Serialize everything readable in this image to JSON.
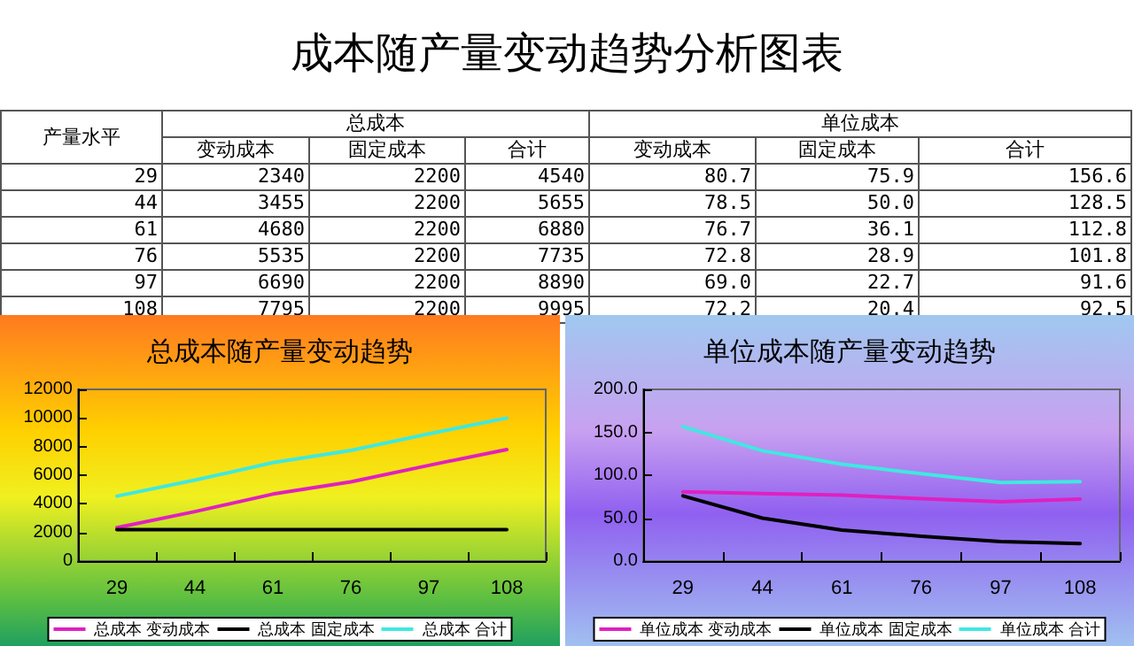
{
  "chart_data": [
    {
      "type": "other",
      "title": "成本随产量变动趋势分析图表",
      "annotations": [
        "产量水平",
        "总成本",
        "变动成本",
        "固定成本",
        "合计",
        "单位成本",
        "变动成本",
        "固定成本",
        "合计"
      ]
    },
    {
      "type": "line",
      "title": "总成本随产量变动趋势",
      "categories": [
        "29",
        "44",
        "61",
        "76",
        "97",
        "108"
      ],
      "ylim": [
        0,
        12000
      ],
      "yticks": [
        0,
        2000,
        4000,
        6000,
        8000,
        10000,
        12000
      ],
      "grid": false,
      "legend": "bottom",
      "marker": "none",
      "line_style": "solid",
      "series": [
        {
          "name": "总成本 变动成本",
          "color": "#e020c0",
          "values": [
            2340,
            3455,
            4680,
            5535,
            6690,
            7795
          ],
          "value_labels": [
            "2340",
            "3455",
            "4680",
            "5535",
            "6690",
            "7795"
          ]
        },
        {
          "name": "总成本 固定成本",
          "color": "#000000",
          "values": [
            2200,
            2200,
            2200,
            2200,
            2200,
            2200
          ],
          "value_labels": [
            "2200",
            "2200",
            "2200",
            "2200",
            "2200",
            "2200"
          ]
        },
        {
          "name": "总成本 合计",
          "color": "#40e8e0",
          "values": [
            4540,
            5655,
            6880,
            7735,
            8890,
            9995
          ],
          "value_labels": [
            "4540",
            "5655",
            "6880",
            "7735",
            "8890",
            "9995"
          ]
        }
      ]
    },
    {
      "type": "line",
      "title": "单位成本随产量变动趋势",
      "categories": [
        "29",
        "44",
        "61",
        "76",
        "97",
        "108"
      ],
      "ylim": [
        0,
        200
      ],
      "yticks": [
        {
          "value": 0,
          "label": "0.0"
        },
        {
          "value": 50,
          "label": "50.0"
        },
        {
          "value": 100,
          "label": "100.0"
        },
        {
          "value": 150,
          "label": "150.0"
        },
        {
          "value": 200,
          "label": "200.0"
        }
      ],
      "grid": false,
      "legend": "bottom",
      "marker": "none",
      "line_style": "solid",
      "series": [
        {
          "name": "单位成本 变动成本",
          "color": "#e020c0",
          "values": [
            80.7,
            78.5,
            76.7,
            72.8,
            69.0,
            72.2
          ],
          "value_labels": [
            "80.7",
            "78.5",
            "76.7",
            "72.8",
            "69.0",
            "72.2"
          ]
        },
        {
          "name": "单位成本 固定成本",
          "color": "#000000",
          "values": [
            75.9,
            50.0,
            36.1,
            28.9,
            22.7,
            20.4
          ],
          "value_labels": [
            "75.9",
            "50.0",
            "36.1",
            "28.9",
            "22.7",
            "20.4"
          ]
        },
        {
          "name": "单位成本 合计",
          "color": "#40e8e0",
          "values": [
            156.6,
            128.5,
            112.8,
            101.8,
            91.6,
            92.5
          ],
          "value_labels": [
            "156.6",
            "128.5",
            "112.8",
            "101.8",
            "91.6",
            "92.5"
          ]
        }
      ]
    }
  ]
}
